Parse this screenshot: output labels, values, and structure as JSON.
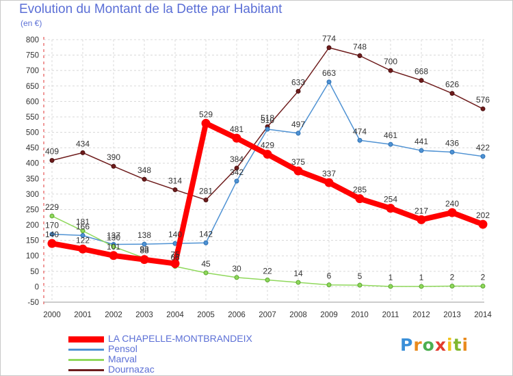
{
  "chart_data": {
    "type": "line",
    "title": "Evolution du Montant de la Dette par Habitant",
    "subtitle": "(en €)",
    "x": [
      "2000",
      "2001",
      "2002",
      "2003",
      "2004",
      "2005",
      "2006",
      "2007",
      "2008",
      "2009",
      "2010",
      "2011",
      "2012",
      "2013",
      "2014"
    ],
    "ylim": [
      -50,
      800
    ],
    "yticks": [
      -50,
      0,
      50,
      100,
      150,
      200,
      250,
      300,
      350,
      400,
      450,
      500,
      550,
      600,
      650,
      700,
      750,
      800
    ],
    "grid": true,
    "legend_position": "bottom-left",
    "series": [
      {
        "name": "LA CHAPELLE-MONTBRANDEIX",
        "color": "#ff0000",
        "values": [
          140,
          122,
          101,
          88,
          75,
          529,
          481,
          429,
          375,
          337,
          285,
          254,
          217,
          240,
          202
        ]
      },
      {
        "name": "Pensol",
        "color": "#4f92d3",
        "values": [
          170,
          166,
          137,
          138,
          140,
          142,
          342,
          510,
          497,
          663,
          474,
          461,
          441,
          436,
          422
        ]
      },
      {
        "name": "Marval",
        "color": "#8fd85b",
        "values": [
          229,
          181,
          130,
          93,
          66,
          45,
          30,
          22,
          14,
          6,
          5,
          1,
          1,
          2,
          2
        ]
      },
      {
        "name": "Dournazac",
        "color": "#6e1c1c",
        "values": [
          409,
          434,
          390,
          348,
          314,
          281,
          384,
          518,
          633,
          774,
          748,
          700,
          668,
          626,
          576
        ]
      }
    ]
  },
  "branding": {
    "logo_letters": [
      "P",
      "r",
      "o",
      "x",
      "i",
      "t",
      "i"
    ],
    "logo_colors": [
      "#3a8fd8",
      "#e98a1d",
      "#4caf50",
      "#e23b2d",
      "#f2c21b",
      "#7fb72f",
      "#e98a1d"
    ]
  }
}
